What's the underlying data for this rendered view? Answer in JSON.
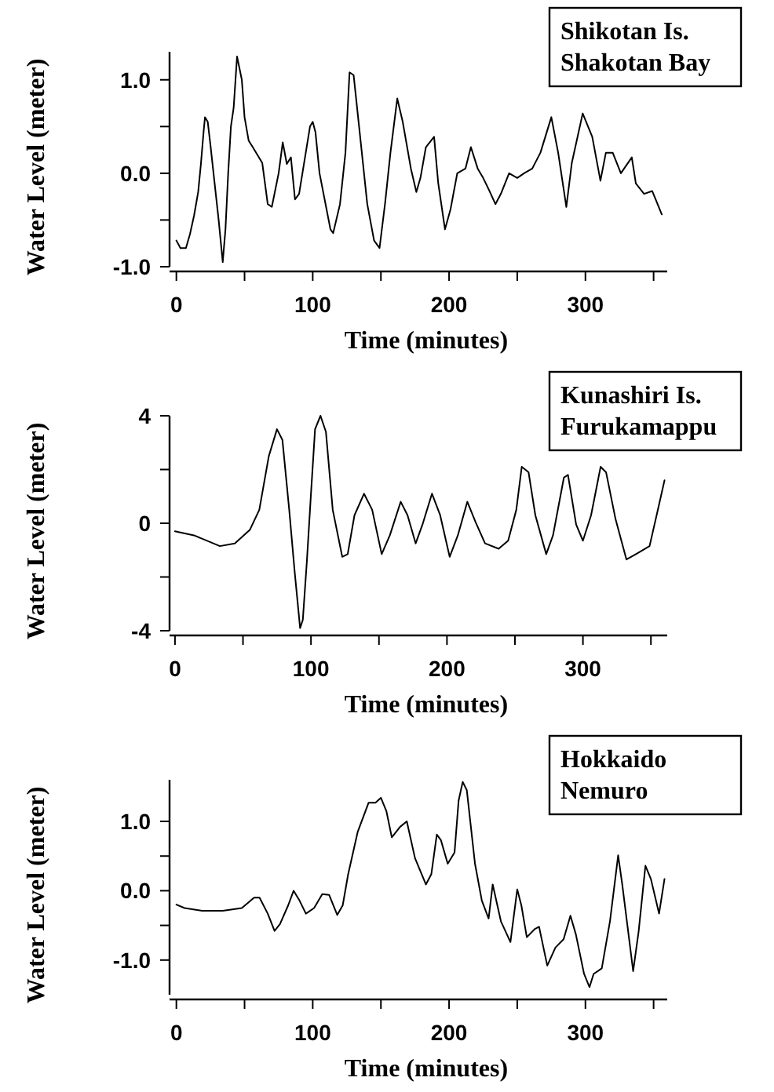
{
  "chart_data": [
    {
      "type": "line",
      "xlabel": "Time (minutes)",
      "ylabel": "Water Level (meter)",
      "annotations": [
        "Shikotan Is.\nShakotan Bay"
      ],
      "color": "#000000",
      "xlim": [
        -5,
        360
      ],
      "ylim": [
        -1.0,
        1.3
      ],
      "xticks": [
        0,
        {
          "value": 50,
          "label": null
        },
        100,
        {
          "value": 150,
          "label": null
        },
        200,
        {
          "value": 250,
          "label": null
        },
        300,
        {
          "value": 350,
          "label": null
        }
      ],
      "yticks": [
        {
          "value": -1,
          "label": "-1.0"
        },
        {
          "value": -0.5,
          "label": null
        },
        {
          "value": 0,
          "label": "0.0"
        },
        {
          "value": 0.5,
          "label": null
        },
        {
          "value": 1,
          "label": "1.0"
        }
      ],
      "x": [
        0,
        3,
        7,
        10,
        13,
        16,
        18,
        20,
        21,
        23,
        25,
        28,
        31,
        33,
        34,
        36,
        38,
        40,
        42,
        44.5,
        48,
        50,
        53,
        56,
        63,
        67,
        70,
        75,
        78,
        81,
        84,
        87,
        90,
        98,
        100,
        102,
        105,
        113,
        115,
        120,
        124,
        127,
        130,
        134,
        140,
        145,
        149,
        153,
        157,
        162,
        166,
        172,
        176,
        179,
        183,
        189,
        192,
        197,
        201,
        206,
        212,
        216,
        221,
        225,
        229,
        234,
        238,
        244,
        250,
        255,
        261,
        267,
        275,
        280,
        286,
        290,
        298,
        305,
        311,
        315,
        320,
        326,
        334,
        337,
        343,
        349,
        356
      ],
      "values": [
        -0.72,
        -0.8,
        -0.8,
        -0.65,
        -0.45,
        -0.2,
        0.1,
        0.45,
        0.6,
        0.55,
        0.3,
        -0.1,
        -0.5,
        -0.8,
        -0.95,
        -0.6,
        0.0,
        0.5,
        0.7,
        1.25,
        1.0,
        0.6,
        0.35,
        0.28,
        0.11,
        -0.33,
        -0.36,
        0.0,
        0.33,
        0.1,
        0.17,
        -0.28,
        -0.22,
        0.5,
        0.55,
        0.44,
        0.0,
        -0.6,
        -0.64,
        -0.33,
        0.22,
        1.08,
        1.05,
        0.5,
        -0.33,
        -0.72,
        -0.8,
        -0.33,
        0.22,
        0.8,
        0.55,
        0.05,
        -0.2,
        -0.05,
        0.28,
        0.39,
        -0.1,
        -0.6,
        -0.39,
        0.0,
        0.05,
        0.28,
        0.05,
        -0.05,
        -0.17,
        -0.33,
        -0.22,
        0.0,
        -0.05,
        0.0,
        0.05,
        0.22,
        0.6,
        0.22,
        -0.36,
        0.11,
        0.64,
        0.39,
        -0.08,
        0.22,
        0.22,
        0.0,
        0.17,
        -0.11,
        -0.22,
        -0.19,
        -0.44
      ]
    },
    {
      "type": "line",
      "xlabel": "Time (minutes)",
      "ylabel": "Water Level (meter)",
      "annotations": [
        "Kunashiri Is.\nFurukamappu"
      ],
      "color": "#000000",
      "xlim": [
        -4,
        362
      ],
      "ylim": [
        -4,
        4
      ],
      "xticks": [
        0,
        {
          "value": 50,
          "label": null
        },
        100,
        {
          "value": 150,
          "label": null
        },
        200,
        {
          "value": 250,
          "label": null
        },
        300,
        {
          "value": 350,
          "label": null
        }
      ],
      "yticks": [
        -4,
        {
          "value": -2,
          "label": null
        },
        0,
        {
          "value": 2,
          "label": null
        },
        4
      ],
      "x": [
        0,
        14,
        33,
        44,
        55,
        62,
        69,
        75,
        79,
        84,
        88,
        92,
        94,
        97,
        100,
        103,
        107,
        111,
        116,
        123,
        127,
        132,
        139,
        145,
        152,
        158,
        166,
        171,
        177,
        182,
        189,
        195,
        202,
        208,
        215,
        221,
        228,
        238,
        245,
        251,
        255,
        260,
        265,
        273,
        278,
        286,
        289,
        295,
        300,
        306,
        313,
        317,
        324,
        332,
        339,
        349,
        356,
        360
      ],
      "values": [
        -0.3,
        -0.45,
        -0.85,
        -0.75,
        -0.25,
        0.5,
        2.5,
        3.5,
        3.1,
        0.5,
        -1.8,
        -3.9,
        -3.6,
        -1.4,
        1.1,
        3.5,
        4.0,
        3.4,
        0.5,
        -1.25,
        -1.15,
        0.3,
        1.1,
        0.5,
        -1.15,
        -0.45,
        0.8,
        0.3,
        -0.75,
        -0.05,
        1.1,
        0.3,
        -1.25,
        -0.45,
        0.8,
        0.05,
        -0.75,
        -0.95,
        -0.65,
        0.5,
        2.1,
        1.9,
        0.3,
        -1.15,
        -0.45,
        1.7,
        1.8,
        -0.05,
        -0.65,
        0.3,
        2.1,
        1.9,
        0.15,
        -1.35,
        -1.15,
        -0.85,
        0.7,
        1.6
      ]
    },
    {
      "type": "line",
      "xlabel": "Time (minutes)",
      "ylabel": "Water Level (meter)",
      "annotations": [
        "Hokkaido\nNemuro"
      ],
      "color": "#000000",
      "xlim": [
        -5,
        360
      ],
      "ylim": [
        -1.5,
        1.6
      ],
      "xticks": [
        0,
        {
          "value": 50,
          "label": null
        },
        100,
        {
          "value": 150,
          "label": null
        },
        200,
        {
          "value": 250,
          "label": null
        },
        300,
        {
          "value": 350,
          "label": null
        }
      ],
      "yticks": [
        {
          "value": -1,
          "label": "-1.0"
        },
        {
          "value": -0.5,
          "label": null
        },
        {
          "value": 0,
          "label": "0.0"
        },
        {
          "value": 0.5,
          "label": null
        },
        {
          "value": 1,
          "label": "1.0"
        }
      ],
      "x": [
        0,
        6,
        19,
        34,
        48,
        57,
        61,
        67,
        72,
        76,
        82,
        86,
        90,
        95,
        101,
        107,
        112,
        118,
        122,
        126,
        133,
        141,
        146,
        150,
        154,
        158,
        164,
        169,
        175,
        183,
        187,
        191,
        194,
        199,
        204,
        207,
        210,
        213,
        219,
        224,
        229,
        232,
        238,
        245,
        250,
        253,
        257,
        263,
        266,
        272,
        278,
        284,
        289,
        293,
        299,
        303,
        306,
        312,
        318,
        324,
        327,
        335,
        339,
        344,
        348,
        354,
        358
      ],
      "values": [
        -0.2,
        -0.25,
        -0.29,
        -0.29,
        -0.25,
        -0.1,
        -0.1,
        -0.33,
        -0.58,
        -0.48,
        -0.21,
        0.0,
        -0.13,
        -0.33,
        -0.25,
        -0.05,
        -0.06,
        -0.35,
        -0.21,
        0.24,
        0.85,
        1.27,
        1.27,
        1.34,
        1.15,
        0.77,
        0.92,
        1.0,
        0.47,
        0.09,
        0.24,
        0.81,
        0.73,
        0.39,
        0.55,
        1.3,
        1.57,
        1.45,
        0.39,
        -0.14,
        -0.4,
        0.09,
        -0.44,
        -0.74,
        0.02,
        -0.21,
        -0.67,
        -0.55,
        -0.52,
        -1.08,
        -0.82,
        -0.7,
        -0.36,
        -0.63,
        -1.2,
        -1.39,
        -1.2,
        -1.12,
        -0.44,
        0.51,
        0.09,
        -1.16,
        -0.59,
        0.36,
        0.17,
        -0.33,
        0.17
      ]
    }
  ]
}
